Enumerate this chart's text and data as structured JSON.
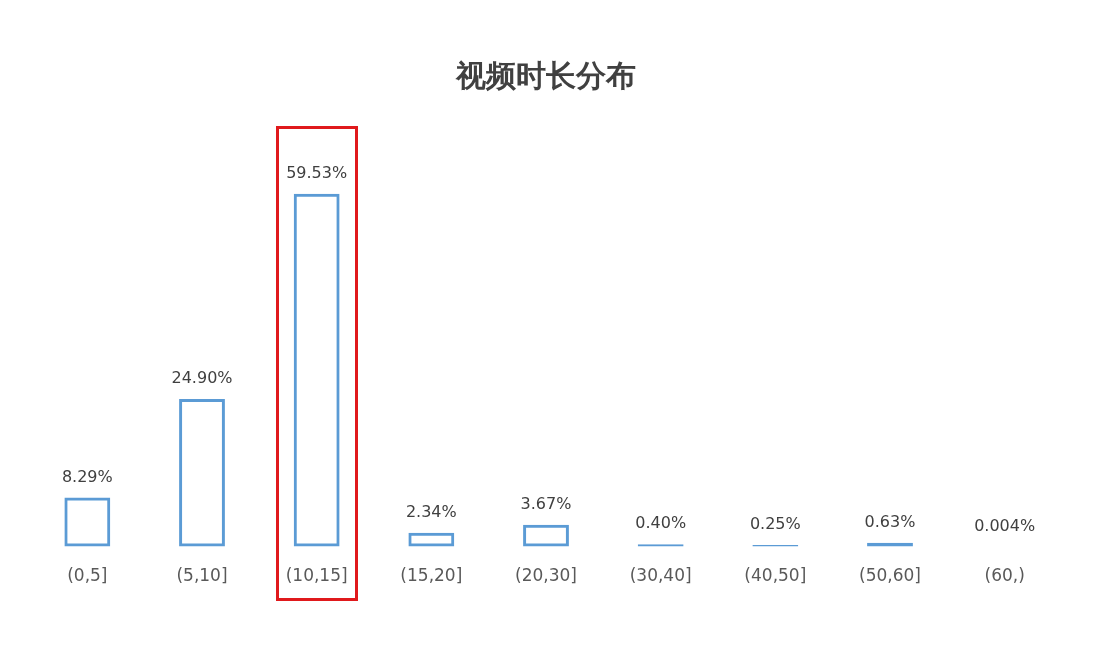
{
  "chart_data": {
    "type": "bar",
    "title": "视频时长分布",
    "categories": [
      "(0,5]",
      "(5,10]",
      "(10,15]",
      "(15,20]",
      "(20,30]",
      "(30,40]",
      "(40,50]",
      "(50,60]",
      "(60,)"
    ],
    "values": [
      8.29,
      24.9,
      59.53,
      2.34,
      3.67,
      0.4,
      0.25,
      0.63,
      0.004
    ],
    "value_labels": [
      "8.29%",
      "24.90%",
      "59.53%",
      "2.34%",
      "3.67%",
      "0.40%",
      "0.25%",
      "0.63%",
      "0.004%"
    ],
    "color": "#5b9bd5",
    "grid": false,
    "legend": false
  }
}
